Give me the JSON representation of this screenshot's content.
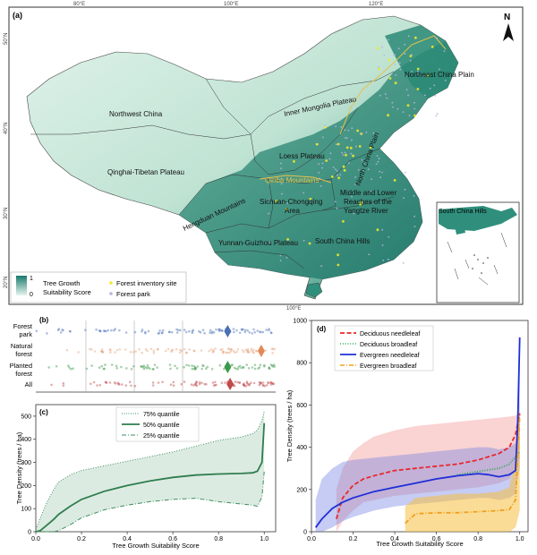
{
  "panel_a": {
    "label": "(a)",
    "north_label": "N",
    "lon_ticks": [
      "80°E",
      "100°E",
      "120°E"
    ],
    "lat_ticks": [
      "50°N",
      "40°N",
      "30°N",
      "20°N"
    ],
    "regions": [
      "Northwest China",
      "Inner Mongolia Plateau",
      "Northeast China Plain",
      "Qinghai-Tibetan Plateau",
      "Loess Plateau",
      "North China Plain",
      "Qinba Mountains",
      "Hengduan Mountains",
      "Sichuan-Chongqing",
      "Area",
      "Middle and Lower",
      "Reaches of the",
      "Yangtze River",
      "Yunnan-Guizhou Plateau",
      "South China Hills"
    ],
    "inset_label": "South China Hills",
    "legend": {
      "colorbar_max": "1",
      "colorbar_min": "0",
      "colorbar_title_1": "Tree Growth",
      "colorbar_title_2": "Suitability Score",
      "site_label": "Forest inventory site",
      "park_label": "Forest park"
    },
    "colors": {
      "suitability_high": "#1a7a6e",
      "suitability_low": "#d9efe6",
      "site": "#f2e829",
      "park": "#b9b2e6"
    }
  },
  "panel_b": {
    "label": "(b)",
    "rows": [
      {
        "label_lines": [
          "Forest",
          "park"
        ],
        "color": "#4a6fb5",
        "marker": 0.8
      },
      {
        "label_lines": [
          "Natural",
          "forest"
        ],
        "color": "#e08a55",
        "marker": 0.94
      },
      {
        "label_lines": [
          "Planted",
          "forest"
        ],
        "color": "#3c9a4a",
        "marker": 0.8
      },
      {
        "label_lines": [
          "All"
        ],
        "color": "#c04a4a",
        "marker": 0.81
      }
    ]
  },
  "chart_data": [
    {
      "type": "line",
      "panel": "(c)",
      "xlabel": "Tree Growth Suitability Score",
      "ylabel": "Tree Density (trees / ha)",
      "xlim": [
        0,
        1.05
      ],
      "ylim": [
        0,
        550
      ],
      "xticks": [
        "0.0",
        "0.2",
        "0.4",
        "0.6",
        "0.8",
        "1.0"
      ],
      "yticks": [
        "0",
        "100",
        "200",
        "300",
        "400",
        "500"
      ],
      "legend_position": "top-center",
      "x": [
        0.0,
        0.02,
        0.05,
        0.08,
        0.1,
        0.15,
        0.2,
        0.3,
        0.4,
        0.5,
        0.6,
        0.7,
        0.8,
        0.9,
        0.95,
        0.97,
        0.99,
        1.0
      ],
      "series": [
        {
          "name": "75% quantile",
          "color": "#3c8f5c",
          "style": "dotted",
          "values": [
            10,
            60,
            130,
            185,
            215,
            245,
            265,
            285,
            305,
            325,
            345,
            370,
            395,
            410,
            425,
            440,
            480,
            520
          ]
        },
        {
          "name": "50% quantile",
          "color": "#2f7d4e",
          "style": "solid",
          "values": [
            0,
            5,
            30,
            55,
            75,
            110,
            140,
            175,
            200,
            220,
            235,
            245,
            250,
            252,
            255,
            262,
            300,
            470
          ]
        },
        {
          "name": "25% quantile",
          "color": "#3c8f5c",
          "style": "dashdot",
          "values": [
            0,
            0,
            0,
            0,
            5,
            30,
            60,
            95,
            115,
            130,
            140,
            145,
            130,
            120,
            115,
            110,
            150,
            260
          ]
        }
      ]
    },
    {
      "type": "line",
      "panel": "(d)",
      "xlabel": "Tree Growth Suitability Score",
      "ylabel": "Tree Density (trees / ha)",
      "xlim": [
        0,
        1.04
      ],
      "ylim": [
        0,
        1000
      ],
      "xticks": [
        "0.0",
        "0.2",
        "0.4",
        "0.6",
        "0.8",
        "1.0"
      ],
      "yticks": [
        "0",
        "200",
        "400",
        "600",
        "800",
        "1000"
      ],
      "legend_position": "top-left",
      "series": [
        {
          "name": "Deciduous needleleaf",
          "color": "#e8282b",
          "style": "dashed",
          "x": [
            0.12,
            0.15,
            0.2,
            0.25,
            0.3,
            0.4,
            0.5,
            0.6,
            0.7,
            0.8,
            0.9,
            0.95,
            0.98,
            1.0
          ],
          "values": [
            60,
            160,
            220,
            250,
            265,
            290,
            300,
            310,
            320,
            340,
            370,
            400,
            460,
            560
          ],
          "band_low": [
            0,
            50,
            100,
            140,
            150,
            170,
            180,
            190,
            200,
            210,
            230,
            250,
            300,
            350
          ],
          "band_high": [
            200,
            300,
            380,
            420,
            450,
            480,
            500,
            510,
            520,
            530,
            540,
            545,
            550,
            560
          ]
        },
        {
          "name": "Deciduous broadleaf",
          "color": "#2aa84a",
          "style": "dotted",
          "x": [
            0.7,
            0.8,
            0.9,
            0.95,
            1.0
          ],
          "values": [
            270,
            285,
            300,
            320,
            380
          ]
        },
        {
          "name": "Evergreen needleleaf",
          "color": "#1f2fd6",
          "style": "solid",
          "x": [
            0.02,
            0.05,
            0.1,
            0.15,
            0.2,
            0.3,
            0.4,
            0.5,
            0.6,
            0.7,
            0.8,
            0.85,
            0.9,
            0.95,
            0.98,
            0.99,
            1.0
          ],
          "values": [
            20,
            60,
            110,
            140,
            160,
            190,
            210,
            230,
            250,
            265,
            275,
            270,
            260,
            270,
            290,
            500,
            920
          ],
          "band_low": [
            0,
            0,
            20,
            50,
            70,
            100,
            120,
            130,
            140,
            150,
            160,
            160,
            150,
            160,
            180,
            250,
            300
          ],
          "band_high": [
            150,
            250,
            300,
            330,
            340,
            350,
            360,
            370,
            380,
            390,
            400,
            400,
            390,
            400,
            420,
            600,
            920
          ]
        },
        {
          "name": "Evergreen broadleaf",
          "color": "#f0a020",
          "style": "dashdot",
          "x": [
            0.45,
            0.5,
            0.6,
            0.7,
            0.8,
            0.9,
            0.95,
            0.98,
            1.0
          ],
          "values": [
            40,
            85,
            90,
            90,
            95,
            100,
            105,
            150,
            550
          ],
          "band_low": [
            0,
            0,
            0,
            0,
            0,
            0,
            0,
            20,
            100
          ],
          "band_high": [
            120,
            160,
            170,
            180,
            180,
            190,
            210,
            350,
            600
          ]
        }
      ]
    }
  ]
}
